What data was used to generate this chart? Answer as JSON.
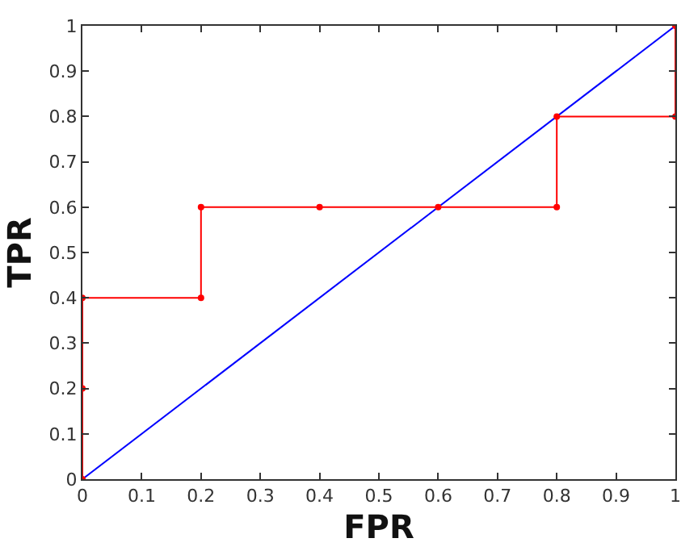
{
  "chart_data": {
    "type": "line",
    "xlabel": "FPR",
    "ylabel": "TPR",
    "xlim": [
      0,
      1
    ],
    "ylim": [
      0,
      1
    ],
    "xticks": [
      0,
      0.1,
      0.2,
      0.3,
      0.4,
      0.5,
      0.6,
      0.7,
      0.8,
      0.9,
      1
    ],
    "yticks": [
      0,
      0.1,
      0.2,
      0.3,
      0.4,
      0.5,
      0.6,
      0.7,
      0.8,
      0.9,
      1
    ],
    "series": [
      {
        "color": "#ff0000",
        "marker": "circle",
        "x": [
          0,
          0,
          0,
          0.2,
          0.2,
          0.4,
          0.6,
          0.8,
          0.8,
          1,
          1
        ],
        "values": [
          0,
          0.2,
          0.4,
          0.4,
          0.6,
          0.6,
          0.6,
          0.6,
          0.8,
          0.8,
          1
        ]
      },
      {
        "color": "#0000ff",
        "marker": "none",
        "x": [
          0,
          1
        ],
        "values": [
          0,
          1
        ]
      }
    ]
  }
}
